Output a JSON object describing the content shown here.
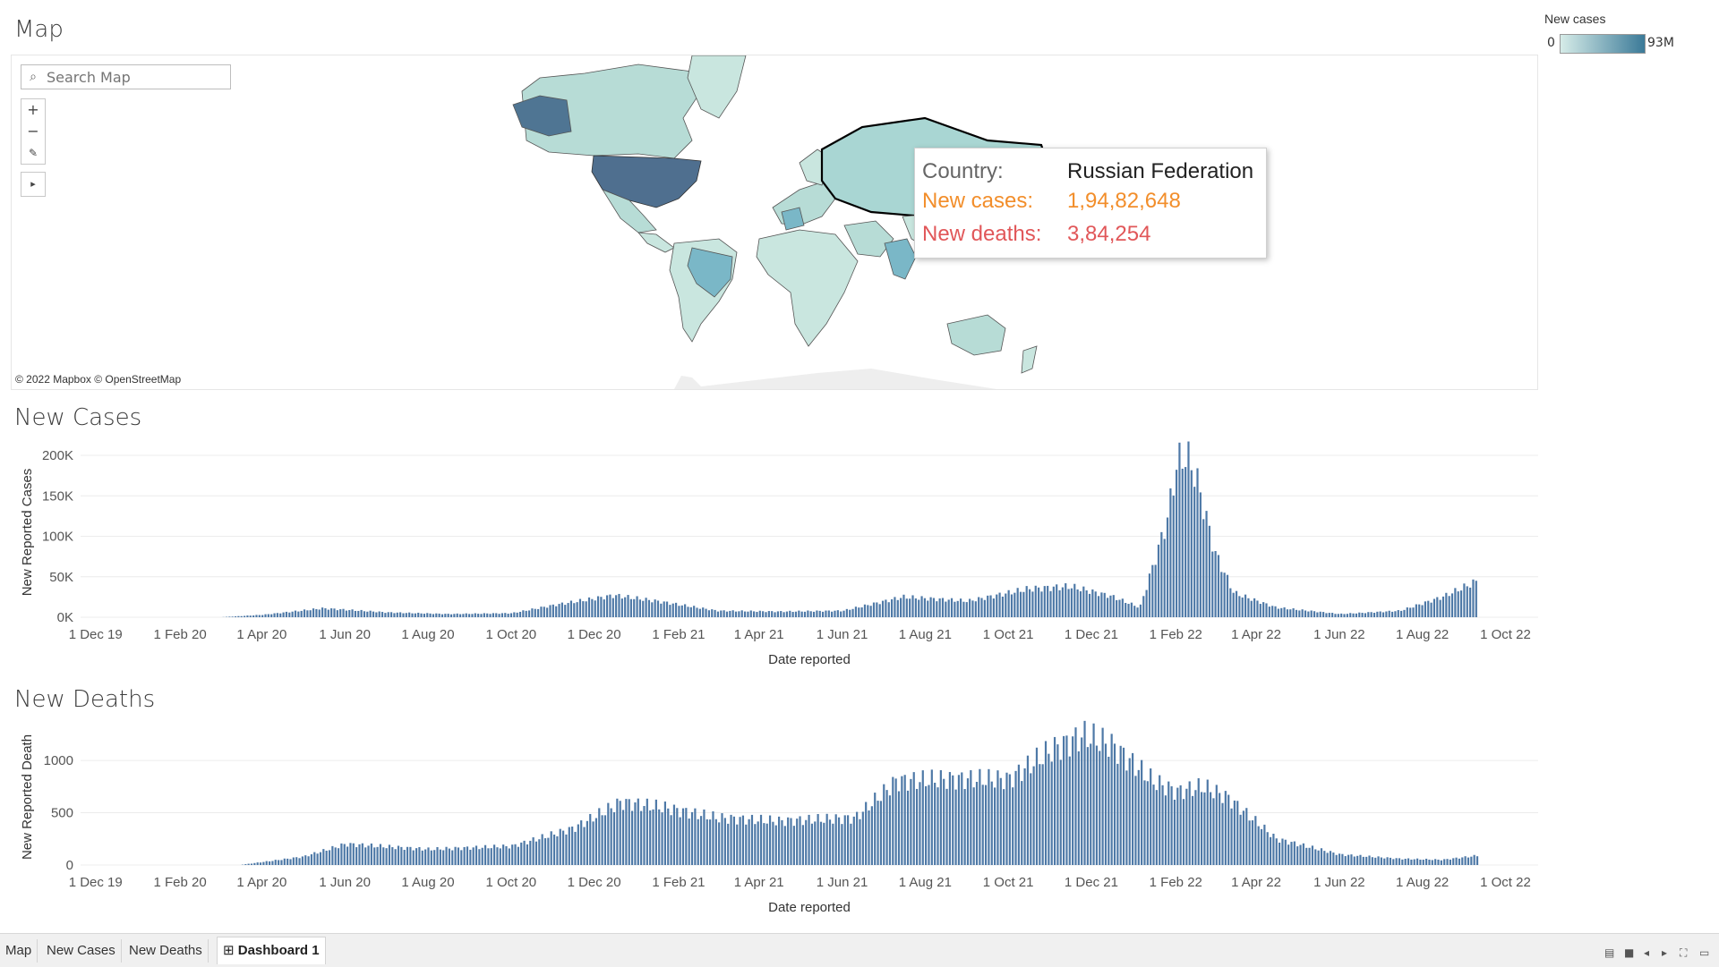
{
  "map": {
    "title": "Map",
    "search_placeholder": "Search Map",
    "zoom_in": "+",
    "zoom_out": "−",
    "play": "▸",
    "attribution": "© 2022 Mapbox © OpenStreetMap"
  },
  "legend": {
    "title": "New cases",
    "min": "0",
    "max": "93M",
    "color_low": "#d6ece8",
    "color_high": "#3b7a98"
  },
  "tooltip": {
    "country_label": "Country:",
    "country_value": "Russian Federation",
    "cases_label": "New cases:",
    "cases_value": "1,94,82,648",
    "deaths_label": "New deaths:",
    "deaths_value": "3,84,254"
  },
  "cases_chart": {
    "title": "New Cases",
    "ylabel": "New Reported Cases",
    "xlabel": "Date reported",
    "bar_color": "#4e79a7"
  },
  "deaths_chart": {
    "title": "New Deaths",
    "ylabel": "New Reported Death",
    "xlabel": "Date reported",
    "bar_color": "#4e79a7"
  },
  "chart_data": [
    {
      "type": "area",
      "title": "New Cases",
      "xlabel": "Date reported",
      "ylabel": "New Reported Cases",
      "x_ticks": [
        "1 Dec 19",
        "1 Feb 20",
        "1 Apr 20",
        "1 Jun 20",
        "1 Aug 20",
        "1 Oct 20",
        "1 Dec 20",
        "1 Feb 21",
        "1 Apr 21",
        "1 Jun 21",
        "1 Aug 21",
        "1 Oct 21",
        "1 Dec 21",
        "1 Feb 22",
        "1 Apr 22",
        "1 Jun 22",
        "1 Aug 22",
        "1 Oct 22"
      ],
      "y_ticks": [
        "0K",
        "50K",
        "100K",
        "150K",
        "200K"
      ],
      "ylim": [
        0,
        210000
      ],
      "xlim": [
        "2019-11-20",
        "2022-10-25"
      ],
      "x": [
        "2020-03-01",
        "2020-04-01",
        "2020-05-15",
        "2020-07-01",
        "2020-08-15",
        "2020-10-01",
        "2020-11-01",
        "2020-12-15",
        "2021-01-15",
        "2021-03-01",
        "2021-04-15",
        "2021-06-01",
        "2021-07-15",
        "2021-09-01",
        "2021-10-15",
        "2021-11-15",
        "2021-12-15",
        "2022-01-05",
        "2022-01-25",
        "2022-02-01",
        "2022-02-08",
        "2022-02-15",
        "2022-03-01",
        "2022-03-15",
        "2022-04-15",
        "2022-06-01",
        "2022-07-15",
        "2022-08-15",
        "2022-09-10"
      ],
      "values": [
        0,
        3000,
        11000,
        6000,
        4000,
        5000,
        15000,
        27000,
        20000,
        8000,
        7000,
        8000,
        25000,
        20000,
        35000,
        38000,
        26000,
        12000,
        120000,
        190000,
        200000,
        175000,
        80000,
        30000,
        12000,
        4000,
        8000,
        25000,
        45000
      ],
      "grid": true,
      "legend": "none"
    },
    {
      "type": "area",
      "title": "New Deaths",
      "xlabel": "Date reported",
      "ylabel": "New Reported Death",
      "x_ticks": [
        "1 Dec 19",
        "1 Feb 20",
        "1 Apr 20",
        "1 Jun 20",
        "1 Aug 20",
        "1 Oct 20",
        "1 Dec 20",
        "1 Feb 21",
        "1 Apr 21",
        "1 Jun 21",
        "1 Aug 21",
        "1 Oct 21",
        "1 Dec 21",
        "1 Feb 22",
        "1 Apr 22",
        "1 Jun 22",
        "1 Aug 22",
        "1 Oct 22"
      ],
      "y_ticks": [
        "0",
        "500",
        "1000"
      ],
      "ylim": [
        0,
        1300
      ],
      "xlim": [
        "2019-11-20",
        "2022-10-25"
      ],
      "x": [
        "2020-03-15",
        "2020-05-01",
        "2020-06-01",
        "2020-08-01",
        "2020-10-01",
        "2020-11-15",
        "2020-12-20",
        "2021-01-20",
        "2021-03-01",
        "2021-04-15",
        "2021-06-10",
        "2021-07-10",
        "2021-08-15",
        "2021-10-01",
        "2021-11-01",
        "2021-11-25",
        "2021-12-15",
        "2022-01-15",
        "2022-02-01",
        "2022-02-20",
        "2022-03-10",
        "2022-04-15",
        "2022-06-01",
        "2022-07-15",
        "2022-08-15",
        "2022-09-10"
      ],
      "values": [
        0,
        80,
        200,
        150,
        180,
        350,
        600,
        550,
        450,
        420,
        450,
        800,
        820,
        820,
        1100,
        1240,
        1150,
        800,
        700,
        750,
        650,
        250,
        100,
        60,
        50,
        90
      ],
      "grid": true,
      "legend": "none"
    }
  ],
  "tabs": [
    {
      "label": "Map",
      "active": false
    },
    {
      "label": "New Cases",
      "active": false
    },
    {
      "label": "New Deaths",
      "active": false
    },
    {
      "label": "Dashboard 1",
      "active": true
    }
  ],
  "toolbar_icons": [
    "grid-view-icon",
    "full-view-icon",
    "prev-icon",
    "next-icon",
    "fullscreen-icon",
    "present-icon"
  ]
}
